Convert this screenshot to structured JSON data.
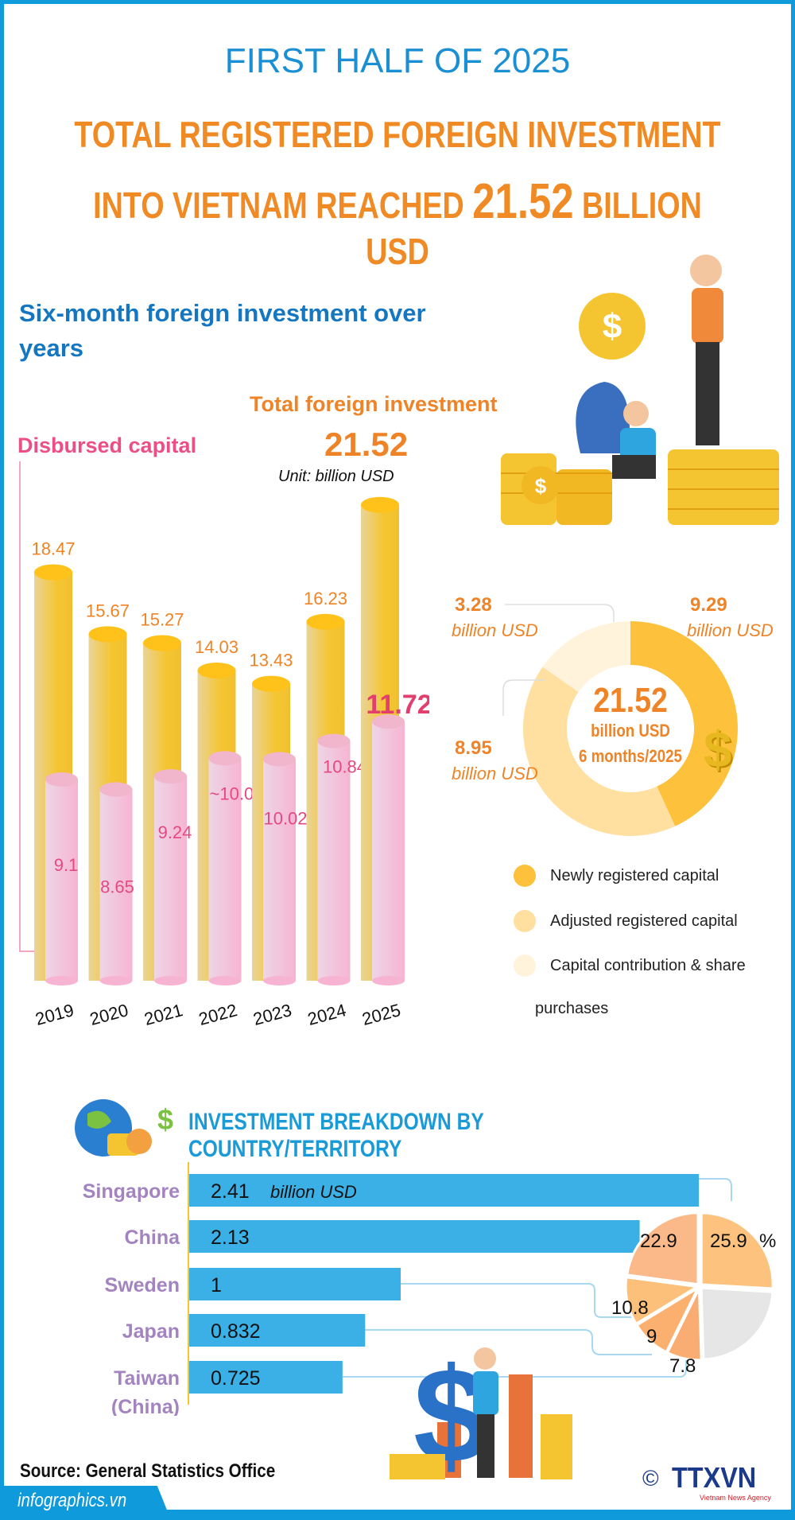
{
  "header": {
    "kicker": "FIRST HALF OF 2025",
    "title_line1": "TOTAL REGISTERED FOREIGN INVESTMENT",
    "title_line2_pre": "INTO VIETNAM REACHED",
    "title_value": "21.52",
    "title_line2_post": "BILLION USD"
  },
  "colors": {
    "frame": "#0E9ADB",
    "total_bar": "#F5C531",
    "disbursed_bar": "#F7BCD6",
    "newly": "#FDC13C",
    "adjusted": "#FFE0A0",
    "contribution": "#FFF3DC",
    "country_bar": "#3BB0E6",
    "country_label": "#A383C0"
  },
  "chart_data": [
    {
      "type": "bar",
      "title": "Six-month foreign investment over years",
      "unit": "Unit: billion USD",
      "categories": [
        "2019",
        "2020",
        "2021",
        "2022",
        "2023",
        "2024",
        "2025"
      ],
      "series": [
        {
          "name": "Total foreign investment",
          "values": [
            18.47,
            15.67,
            15.27,
            14.03,
            13.43,
            16.23,
            21.52
          ],
          "labels": [
            "18.47",
            "15.67",
            "15.27",
            "14.03",
            "13.43",
            "16.23",
            "21.52"
          ]
        },
        {
          "name": "Disbursed capital",
          "values": [
            9.1,
            8.65,
            9.24,
            10.06,
            10.02,
            10.84,
            11.72
          ],
          "labels": [
            "9.1",
            "8.65",
            "9.24",
            "~10.06",
            "10.02",
            "10.84",
            "11.72"
          ]
        }
      ]
    },
    {
      "type": "pie",
      "center_value": "21.52",
      "center_unit": "billion USD",
      "center_period": "6 months/2025",
      "unit_label": "billion USD",
      "slices": [
        {
          "name": "Newly registered capital",
          "value": 9.29,
          "label": "9.29"
        },
        {
          "name": "Adjusted registered capital",
          "value": 8.95,
          "label": "8.95"
        },
        {
          "name": "Capital contribution & share",
          "name_cont": "purchases",
          "value": 3.28,
          "label": "3.28"
        }
      ]
    },
    {
      "type": "bar",
      "orientation": "horizontal",
      "title": "INVESTMENT BREAKDOWN BY COUNTRY/TERRITORY",
      "unit_label": "billion USD",
      "categories": [
        "Singapore",
        "China",
        "Sweden",
        "Japan",
        "Taiwan (China)"
      ],
      "category_lines": [
        [
          "Singapore"
        ],
        [
          "China"
        ],
        [
          "Sweden"
        ],
        [
          "Japan"
        ],
        [
          "Taiwan",
          "(China)"
        ]
      ],
      "values": [
        2.41,
        2.13,
        1,
        0.832,
        0.725
      ],
      "labels": [
        "2.41",
        "2.13",
        "1",
        "0.832",
        "0.725"
      ]
    },
    {
      "type": "pie",
      "percent_sign": "%",
      "slices": [
        {
          "value": 25.9,
          "label": "25.9"
        },
        {
          "value": 22.9,
          "label": "22.9"
        },
        {
          "value": 10.8,
          "label": "10.8"
        },
        {
          "value": 9,
          "label": "9"
        },
        {
          "value": 7.8,
          "label": "7.8"
        },
        {
          "value": 23.6,
          "label": ""
        }
      ]
    }
  ],
  "footer": {
    "source": "Source: General Statistics Office",
    "site": "infographics.vn",
    "logo": "TTXVN",
    "logo_sub": "Vietnam News Agency",
    "copyright": "©"
  }
}
